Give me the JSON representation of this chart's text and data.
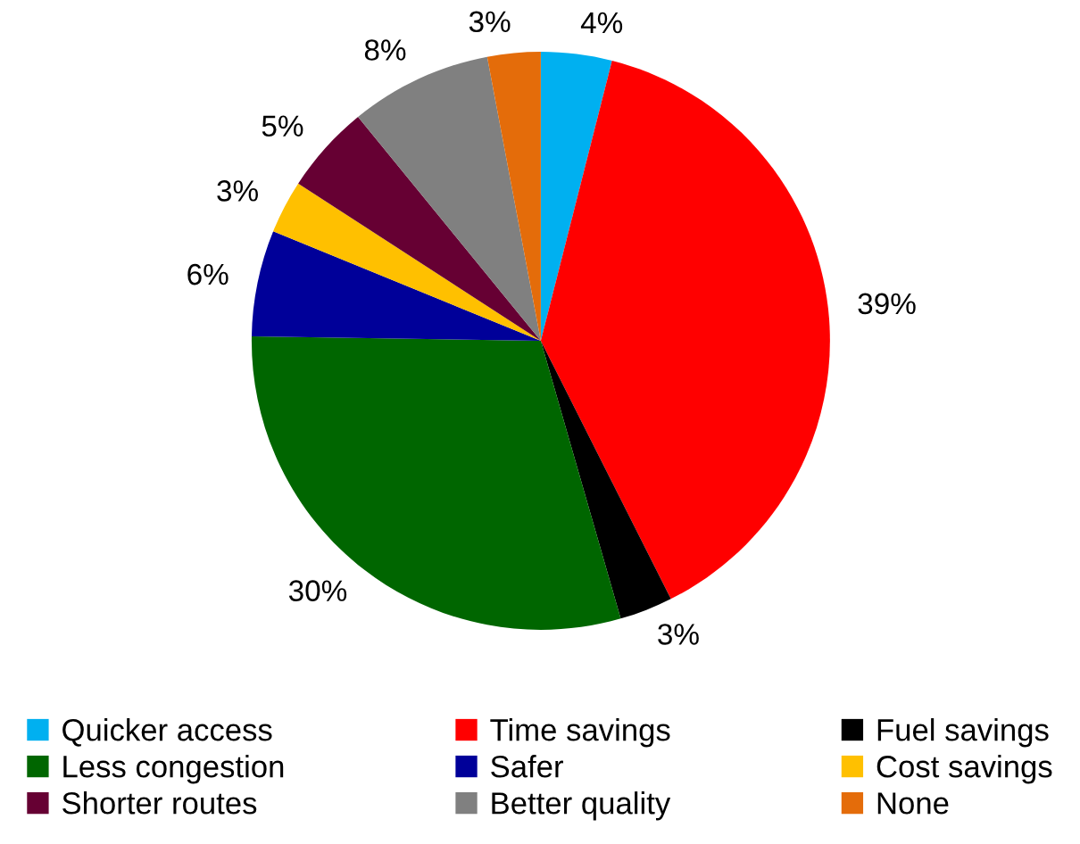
{
  "chart_data": {
    "type": "pie",
    "categories": [
      "Quicker access",
      "Time savings",
      "Fuel savings",
      "Less congestion",
      "Safer",
      "Cost savings",
      "Shorter routes",
      "Better quality",
      "None"
    ],
    "values": [
      4,
      39,
      3,
      30,
      6,
      3,
      5,
      8,
      3
    ],
    "colors": [
      "#00b0f0",
      "#ff0000",
      "#000000",
      "#006600",
      "#000099",
      "#ffc000",
      "#660033",
      "#808080",
      "#e46c0a"
    ],
    "value_labels": [
      "4%",
      "39%",
      "3%",
      "30%",
      "6%",
      "3%",
      "5%",
      "8%",
      "3%"
    ],
    "legend": "bottom"
  }
}
